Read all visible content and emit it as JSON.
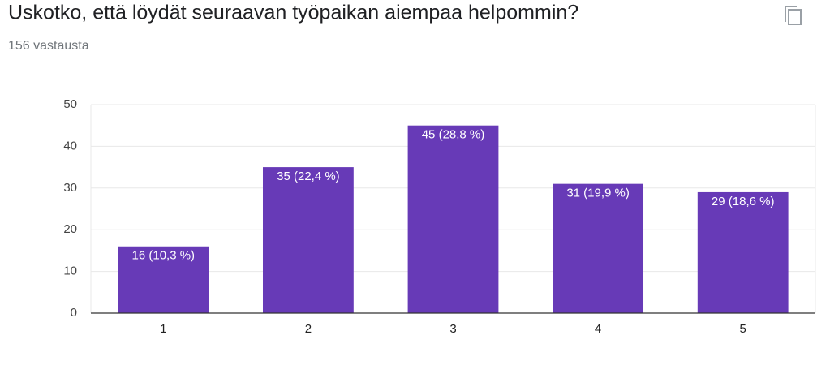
{
  "chart_data": {
    "type": "bar",
    "title": "Uskotko, että löydät seuraavan työpaikan aiempaa helpommin?",
    "subtitle": "156 vastausta",
    "categories": [
      "1",
      "2",
      "3",
      "4",
      "5"
    ],
    "values": [
      16,
      35,
      45,
      31,
      29
    ],
    "value_labels": [
      "16 (10,3 %)",
      "35 (22,4 %)",
      "45 (28,8 %)",
      "31 (19,9 %)",
      "29 (18,6 %)"
    ],
    "color": "#673ab7",
    "ylim": [
      0,
      50
    ],
    "yticks": [
      0,
      10,
      20,
      30,
      40,
      50
    ],
    "grid": true
  }
}
